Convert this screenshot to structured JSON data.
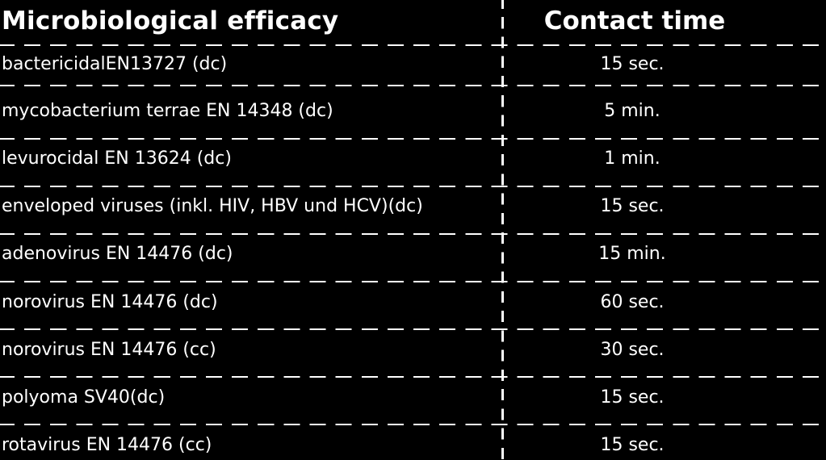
{
  "table": {
    "header": {
      "left": "Microbiological efficacy",
      "right": "Contact time"
    },
    "rows": [
      {
        "efficacy": "bactericidalEN13727 (dc)",
        "time": "15 sec."
      },
      {
        "efficacy": "mycobacterium terrae EN 14348 (dc)",
        "time": "5 min."
      },
      {
        "efficacy": "levurocidal  EN 13624 (dc)",
        "time": "1 min."
      },
      {
        "efficacy": "enveloped viruses (inkl. HIV, HBV und HCV)(dc)",
        "time": "15 sec."
      },
      {
        "efficacy": "adenovirus EN 14476 (dc)",
        "time": "15 min."
      },
      {
        "efficacy": "norovirus  EN 14476 (dc)",
        "time": "60 sec."
      },
      {
        "efficacy": "norovirus  EN 14476 (cc)",
        "time": "30 sec."
      },
      {
        "efficacy": "polyoma SV40(dc)",
        "time": "15 sec."
      },
      {
        "efficacy": "rotavirus EN 14476 (cc)",
        "time": "15 sec."
      }
    ]
  },
  "colors": {
    "background": "#000000",
    "text": "#ffffff",
    "rules": "#ffffff"
  }
}
